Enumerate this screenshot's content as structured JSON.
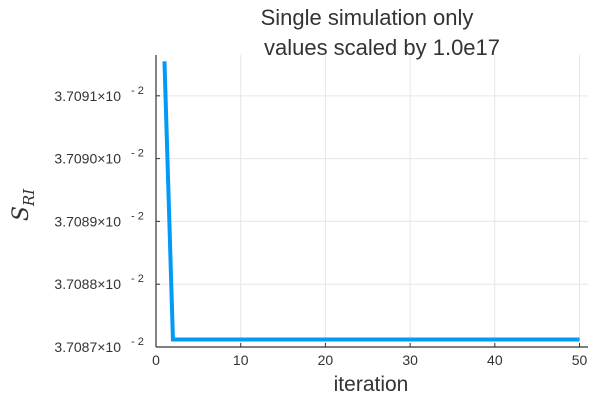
{
  "chart_data": {
    "type": "line",
    "title": [
      "Single simulation only",
      "values scaled by 1.0e17"
    ],
    "xlabel": "iteration",
    "ylabel": "S",
    "ylabel_sub": "RI",
    "xlim": [
      0,
      51
    ],
    "ylim": [
      3.7087,
      3.709165
    ],
    "xticks": [
      0,
      10,
      20,
      30,
      40,
      50
    ],
    "yticks": [
      {
        "value": 3.7087,
        "mantissa": "3.7087×10",
        "exponent": "- 2"
      },
      {
        "value": 3.7088,
        "mantissa": "3.7088×10",
        "exponent": "- 2"
      },
      {
        "value": 3.7089,
        "mantissa": "3.7089×10",
        "exponent": "- 2"
      },
      {
        "value": 3.709,
        "mantissa": "3.7090×10",
        "exponent": "- 2"
      },
      {
        "value": 3.7091,
        "mantissa": "3.7091×10",
        "exponent": "- 2"
      }
    ],
    "grid": true,
    "legend": false,
    "series": [
      {
        "color": "#009af9",
        "x": [
          1,
          2,
          3,
          4,
          5,
          6,
          7,
          8,
          9,
          10,
          11,
          12,
          13,
          14,
          15,
          16,
          17,
          18,
          19,
          20,
          21,
          22,
          23,
          24,
          25,
          26,
          27,
          28,
          29,
          30,
          31,
          32,
          33,
          34,
          35,
          36,
          37,
          38,
          39,
          40,
          41,
          42,
          43,
          44,
          45,
          46,
          47,
          48,
          49,
          50
        ],
        "y": [
          3.709155,
          3.708712,
          3.708712,
          3.708712,
          3.708712,
          3.708712,
          3.708712,
          3.708712,
          3.708712,
          3.708712,
          3.708712,
          3.708712,
          3.708712,
          3.708712,
          3.708712,
          3.708712,
          3.708712,
          3.708712,
          3.708712,
          3.708712,
          3.708712,
          3.708712,
          3.708712,
          3.708712,
          3.708712,
          3.708712,
          3.708712,
          3.708712,
          3.708712,
          3.708712,
          3.708712,
          3.708712,
          3.708712,
          3.708712,
          3.708712,
          3.708712,
          3.708712,
          3.708712,
          3.708712,
          3.708712,
          3.708712,
          3.708712,
          3.708712,
          3.708712,
          3.708712,
          3.708712,
          3.708712,
          3.708712,
          3.708712,
          3.708712
        ]
      }
    ]
  }
}
